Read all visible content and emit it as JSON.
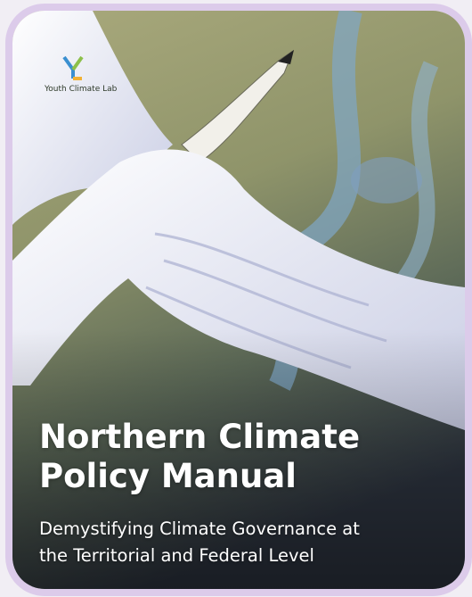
{
  "logo": {
    "text": "Youth Climate Lab"
  },
  "title": [
    "Northern Climate",
    "Policy Manual"
  ],
  "subtitle": [
    "Demystifying Climate Governance at",
    "the Territorial and Federal Level"
  ]
}
